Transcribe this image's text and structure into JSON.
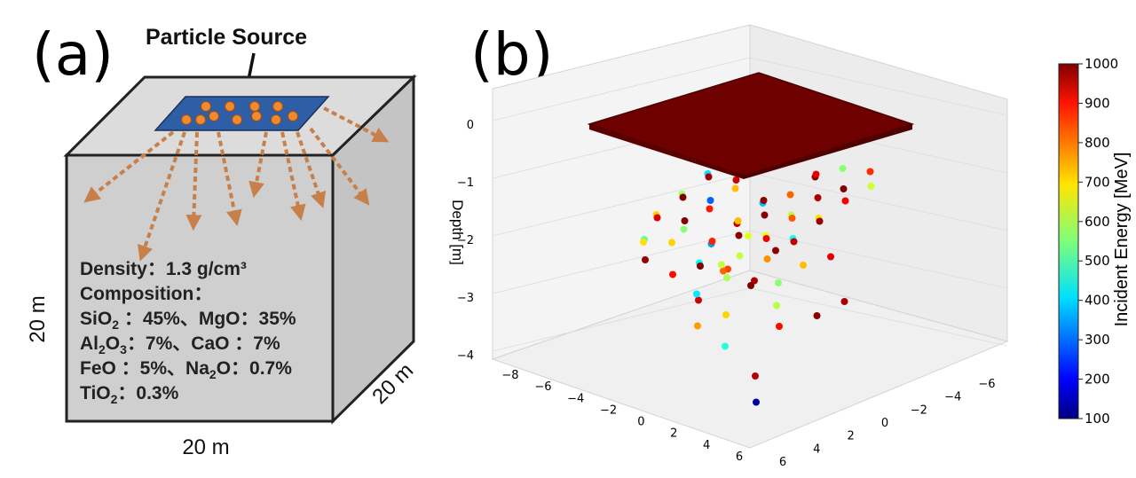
{
  "panel_a": {
    "label": "(a)",
    "source_label": "Particle Source",
    "dim_left": "20 m",
    "dim_right": "20 m",
    "dim_bottom": "20 m",
    "density": "Density：1.3 g/cm³",
    "composition_title": "Composition：",
    "comp_row1_a_base": "SiO",
    "comp_row1_a_sub": "2",
    "comp_row1_a_rest": " ：45%、",
    "comp_row1_b": "MgO：35%",
    "comp_row2_a_base": "Al",
    "comp_row2_a_sub1": "2",
    "comp_row2_a_mid": "O",
    "comp_row2_a_sub2": "3",
    "comp_row2_a_rest": "：7%、",
    "comp_row2_b": "CaO ：7%",
    "comp_row3_a": "FeO ：5%、",
    "comp_row3_b_base": "Na",
    "comp_row3_b_sub": "2",
    "comp_row3_b_rest": "O：0.7%",
    "comp_row4_base": "TiO",
    "comp_row4_sub": "2",
    "comp_row4_rest": "：0.3%",
    "colors": {
      "cube_front": "#cfcfcf",
      "cube_top": "#dcdcdc",
      "cube_side": "#c4c4c4",
      "source_plate": "#2e5fa6",
      "particle": "#f08a30",
      "arrow": "#c8804a"
    }
  },
  "panel_b": {
    "label": "(b)",
    "chart_data": {
      "type": "scatter",
      "projection": "3d",
      "zlabel": "Depth [m]",
      "colorbar_label": "Incident Energy [MeV]",
      "colormap": "jet",
      "color_range": [
        100,
        1000
      ],
      "colorbar_ticks": [
        "1000",
        "900",
        "800",
        "700",
        "600",
        "500",
        "400",
        "300",
        "200",
        "100"
      ],
      "z_ticks": [
        "0",
        "−1",
        "−2",
        "−3",
        "−4"
      ],
      "x_ticks": [
        "−8",
        "−6",
        "−4",
        "−2",
        "0",
        "2",
        "4",
        "6"
      ],
      "y_ticks": [
        "−6",
        "−4",
        "−2",
        "0",
        "2",
        "4",
        "6"
      ],
      "zlim": [
        -4.5,
        0.3
      ],
      "source_layer": {
        "depth": 0,
        "extent": [
          -6,
          6
        ],
        "energy": 1000
      },
      "points": [
        [
          -5,
          -4,
          -1.0,
          950
        ],
        [
          -4,
          -5,
          -1.1,
          980
        ],
        [
          -3,
          -4,
          -0.9,
          880
        ],
        [
          -2,
          -5,
          -1.2,
          640
        ],
        [
          -1,
          -4,
          -1.0,
          700
        ],
        [
          0,
          -5,
          -1.3,
          990
        ],
        [
          1,
          -4,
          -1.1,
          910
        ],
        [
          2,
          -5,
          -1.0,
          560
        ],
        [
          3,
          -4,
          -1.2,
          1000
        ],
        [
          4,
          -5,
          -0.9,
          850
        ],
        [
          5,
          -4,
          -1.0,
          620
        ],
        [
          -5,
          -2,
          -1.4,
          410
        ],
        [
          -4,
          -1,
          -1.3,
          970
        ],
        [
          -3,
          -2,
          -1.5,
          720
        ],
        [
          -2,
          -1,
          -1.2,
          930
        ],
        [
          -1,
          -2,
          -1.6,
          380
        ],
        [
          0,
          -1,
          -1.4,
          990
        ],
        [
          1,
          -2,
          -1.3,
          800
        ],
        [
          2,
          -1,
          -1.5,
          600
        ],
        [
          3,
          -2,
          -1.2,
          960
        ],
        [
          4,
          -1,
          -1.4,
          690
        ],
        [
          5,
          -2,
          -1.1,
          900
        ],
        [
          -5,
          0,
          -1.6,
          580
        ],
        [
          -4,
          1,
          -1.5,
          1000
        ],
        [
          -3,
          0,
          -1.7,
          870
        ],
        [
          -2,
          1,
          -1.4,
          300
        ],
        [
          -1,
          0,
          -1.8,
          940
        ],
        [
          0,
          1,
          -1.6,
          720
        ],
        [
          1,
          0,
          -1.5,
          990
        ],
        [
          2,
          1,
          -1.7,
          640
        ],
        [
          3,
          0,
          -1.4,
          810
        ],
        [
          4,
          1,
          -1.6,
          450
        ],
        [
          5,
          0,
          -1.3,
          980
        ],
        [
          -5,
          2,
          -1.8,
          700
        ],
        [
          -4,
          3,
          -1.7,
          920
        ],
        [
          -3,
          2,
          -1.9,
          560
        ],
        [
          -2,
          3,
          -1.6,
          1000
        ],
        [
          -1,
          2,
          -2.0,
          350
        ],
        [
          0,
          3,
          -1.8,
          860
        ],
        [
          1,
          2,
          -1.7,
          990
        ],
        [
          2,
          3,
          -1.9,
          610
        ],
        [
          3,
          2,
          -1.6,
          900
        ],
        [
          4,
          3,
          -1.8,
          760
        ],
        [
          5,
          2,
          -1.5,
          940
        ],
        [
          -4,
          4,
          -2.0,
          520
        ],
        [
          -3,
          5,
          -2.2,
          980
        ],
        [
          -2,
          4,
          -1.9,
          700
        ],
        [
          -1,
          5,
          -2.3,
          880
        ],
        [
          0,
          4,
          -2.1,
          430
        ],
        [
          1,
          5,
          -2.0,
          1000
        ],
        [
          2,
          4,
          -2.2,
          590
        ],
        [
          3,
          5,
          -1.9,
          830
        ],
        [
          4,
          4,
          -2.1,
          960
        ],
        [
          -3,
          -3,
          -2.4,
          640
        ],
        [
          -1,
          -3,
          -2.5,
          990
        ],
        [
          1,
          -3,
          -2.6,
          720
        ],
        [
          3,
          -3,
          -2.3,
          910
        ],
        [
          -2,
          0,
          -2.7,
          800
        ],
        [
          0,
          0,
          -2.8,
          1000
        ],
        [
          2,
          0,
          -2.6,
          560
        ],
        [
          -1,
          3,
          -2.9,
          930
        ],
        [
          1,
          3,
          -3.0,
          700
        ],
        [
          -3,
          1,
          -3.1,
          420
        ],
        [
          3,
          1,
          -3.2,
          880
        ],
        [
          0,
          -2,
          -3.3,
          600
        ],
        [
          2,
          -3,
          -3.4,
          990
        ],
        [
          -2,
          2,
          -3.5,
          750
        ],
        [
          0,
          2,
          -3.7,
          470
        ],
        [
          4,
          -3,
          -3.0,
          960
        ],
        [
          -4,
          -2,
          -2.9,
          610
        ],
        [
          5,
          5,
          -3.6,
          950
        ],
        [
          -5,
          3,
          -2.2,
          690
        ],
        [
          6,
          6,
          -3.9,
          130
        ]
      ]
    }
  }
}
